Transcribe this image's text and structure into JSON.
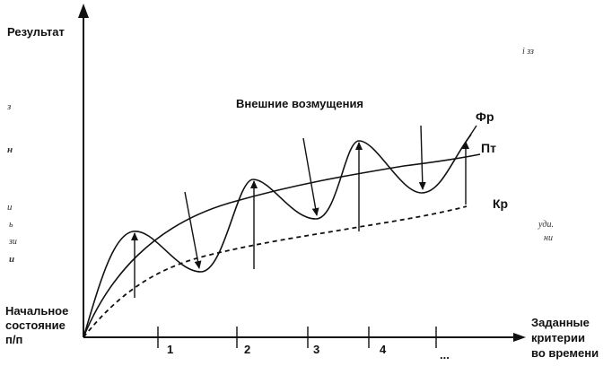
{
  "y_axis_label": "Результат",
  "x_axis_label": [
    "Заданные",
    "критерии",
    "во времени"
  ],
  "origin_label": [
    "Начальное",
    "состояние",
    "п/п"
  ],
  "disturbance_label": "Внешние возмущения",
  "curves": {
    "fr": "Фр",
    "pt": "Пт",
    "kr": "Кр"
  },
  "x_ticks": [
    "1",
    "2",
    "3",
    "4",
    "..."
  ],
  "scan_artifacts": {
    "top_right": "і зз",
    "left": [
      "з",
      "н",
      "и",
      "ь",
      "зи",
      "и"
    ],
    "right": [
      "уди.",
      "ни"
    ]
  }
}
